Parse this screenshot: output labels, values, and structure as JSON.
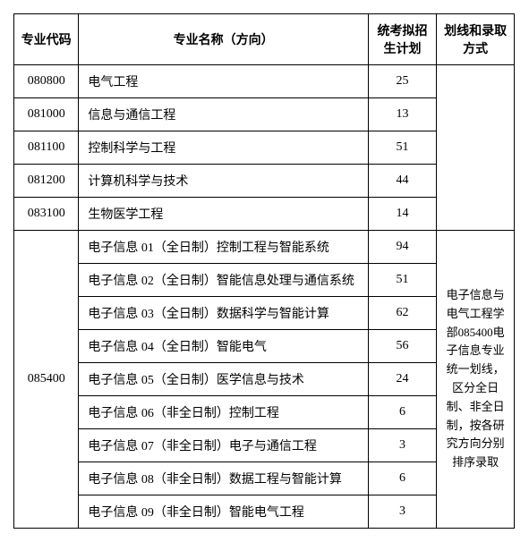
{
  "headers": {
    "code": "专业代码",
    "name": "专业名称（方向）",
    "plan": "统考拟招生计划",
    "note": "划线和录取方式"
  },
  "group1": {
    "rows": [
      {
        "code": "080800",
        "name": "电气工程",
        "plan": "25"
      },
      {
        "code": "081000",
        "name": "信息与通信工程",
        "plan": "13"
      },
      {
        "code": "081100",
        "name": "控制科学与工程",
        "plan": "51"
      },
      {
        "code": "081200",
        "name": "计算机科学与技术",
        "plan": "44"
      },
      {
        "code": "083100",
        "name": "生物医学工程",
        "plan": "14"
      }
    ]
  },
  "group2": {
    "code": "085400",
    "rows": [
      {
        "name": "电子信息 01（全日制）控制工程与智能系统",
        "plan": "94"
      },
      {
        "name": "电子信息 02（全日制）智能信息处理与通信系统",
        "plan": "51"
      },
      {
        "name": "电子信息 03（全日制）数据科学与智能计算",
        "plan": "62"
      },
      {
        "name": "电子信息 04（全日制）智能电气",
        "plan": "56"
      },
      {
        "name": "电子信息 05（全日制）医学信息与技术",
        "plan": "24"
      },
      {
        "name": "电子信息 06（非全日制）控制工程",
        "plan": "6"
      },
      {
        "name": "电子信息 07（非全日制）电子与通信工程",
        "plan": "3"
      },
      {
        "name": "电子信息 08（非全日制）数据工程与智能计算",
        "plan": "6"
      },
      {
        "name": "电子信息 09（非全日制）智能电气工程",
        "plan": "3"
      }
    ],
    "note": "电子信息与电气工程学部085400电子信息专业统一划线，区分全日制、非全日制，按各研究方向分别排序录取"
  }
}
